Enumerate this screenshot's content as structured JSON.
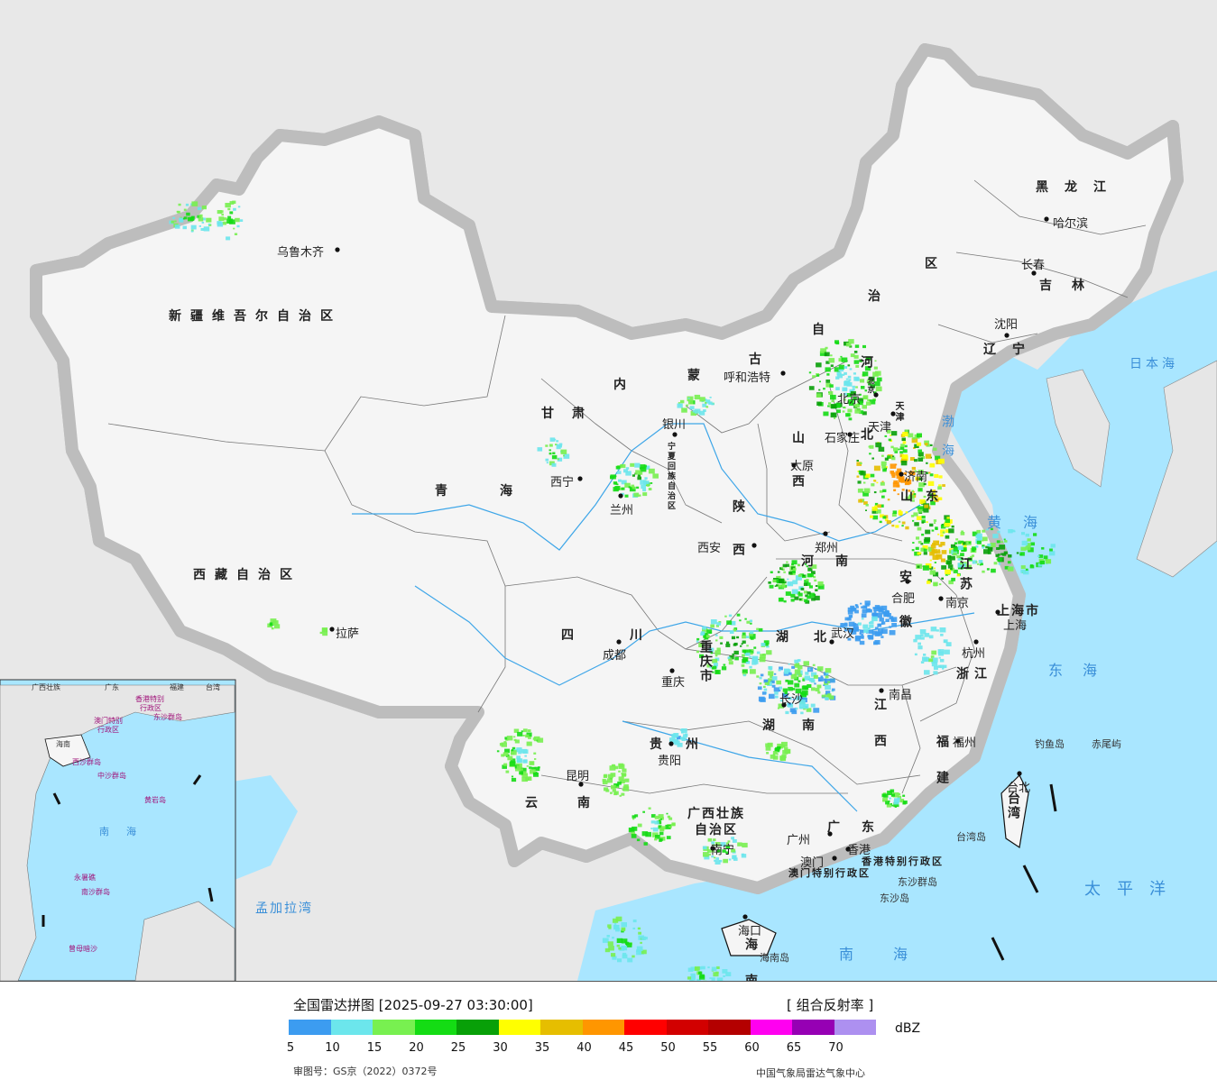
{
  "title": "全国雷达拼图 [2025-09-27 03:30:00]",
  "product": "[ 组合反射率 ]",
  "unit": "dBZ",
  "approval": "审图号：GS京（2022）0372号",
  "agency": "中国气象局雷达气象中心",
  "scale": {
    "colors": [
      "#3c9cf0",
      "#6ce6ec",
      "#78f050",
      "#14dc14",
      "#08a008",
      "#ffff00",
      "#e6be00",
      "#ff9600",
      "#ff0000",
      "#d20000",
      "#b40000",
      "#ff00f0",
      "#9600b4",
      "#ad90f0"
    ],
    "ticks": [
      "5",
      "10",
      "15",
      "20",
      "25",
      "30",
      "35",
      "40",
      "45",
      "50",
      "55",
      "60",
      "65",
      "70"
    ]
  },
  "provinces": {
    "xinjiang": "新疆维吾尔自治区",
    "xizang": "西藏自治区",
    "qinghai": "青海",
    "gansu": "甘肃",
    "neimenggu_1": "内",
    "neimenggu_2": "蒙",
    "neimenggu_3": "古",
    "neimenggu_4": "自",
    "neimenggu_5": "治",
    "neimenggu_6": "区",
    "heilongjiang": "黑龙江",
    "jilin": "吉林",
    "liaoning": "辽宁",
    "ningxia": "宁夏回族自治区",
    "shaanxi": "陕西",
    "shanxi": "山西",
    "hebei": "河北",
    "shandong": "山东",
    "henan": "河南",
    "jiangsu": "江苏",
    "anhui": "安徽",
    "shanghai": "上海市",
    "zhejiang": "浙江",
    "hubei": "湖北",
    "hunan": "湖南",
    "jiangxi": "江西",
    "fujian": "福建",
    "sichuan": "四川",
    "chongqing": "重庆市",
    "guizhou": "贵州",
    "yunnan": "云南",
    "guangxi_1": "广西壮族",
    "guangxi_2": "自治区",
    "guangdong": "广东",
    "hainan": "海南",
    "taiwan": "台湾",
    "hk": "香港特别行政区",
    "macao": "澳门特别行政区",
    "tianjin": "天津",
    "beijing": "北京"
  },
  "cities": {
    "urumqi": "乌鲁木齐",
    "lhasa": "拉萨",
    "xining": "西宁",
    "lanzhou": "兰州",
    "yinchuan": "银川",
    "hohhot": "呼和浩特",
    "harbin": "哈尔滨",
    "changchun": "长春",
    "shenyang": "沈阳",
    "beijing": "北京",
    "tianjin": "天津",
    "shijiazhuang": "石家庄",
    "taiyuan": "太原",
    "jinan": "济南",
    "zhengzhou": "郑州",
    "xian": "西安",
    "hefei": "合肥",
    "nanjing": "南京",
    "shanghai": "上海",
    "hangzhou": "杭州",
    "wuhan": "武汉",
    "changsha": "长沙",
    "nanchang": "南昌",
    "fuzhou": "福州",
    "taibei": "台北",
    "chengdu": "成都",
    "chongqing": "重庆",
    "guiyang": "贵阳",
    "kunming": "昆明",
    "nanning": "南宁",
    "guangzhou": "广州",
    "hongkong": "香港",
    "macao": "澳门",
    "haikou": "海口"
  },
  "seas": {
    "bohai": "渤海",
    "huanghai": "黄海",
    "donghai": "东海",
    "nanhai": "南海",
    "ribenhai": "日本海",
    "taipingyang": "太平洋",
    "mengjialawan": "孟加拉湾"
  },
  "islands": {
    "diaoyu": "钓鱼岛",
    "chiwei": "赤尾屿",
    "taiwan_isl": "台湾岛",
    "dongsha_qd": "东沙群岛",
    "dongsha_d": "东沙岛",
    "hainan_isl": "海南岛"
  },
  "inset": {
    "l1": "广西壮族",
    "l2": "广东",
    "l3": "福建",
    "l4": "台湾",
    "l5": "香港特别",
    "l6": "行政区",
    "l7": "澳门特别",
    "l8": "行政区",
    "l9": "东沙群岛",
    "l10": "海南",
    "l11": "西沙群岛",
    "l12": "中沙群岛",
    "l13": "黄岩岛",
    "l14": "南",
    "l15": "海",
    "l16": "南沙群岛",
    "l17": "曾母暗沙",
    "l18": "永暑礁"
  }
}
